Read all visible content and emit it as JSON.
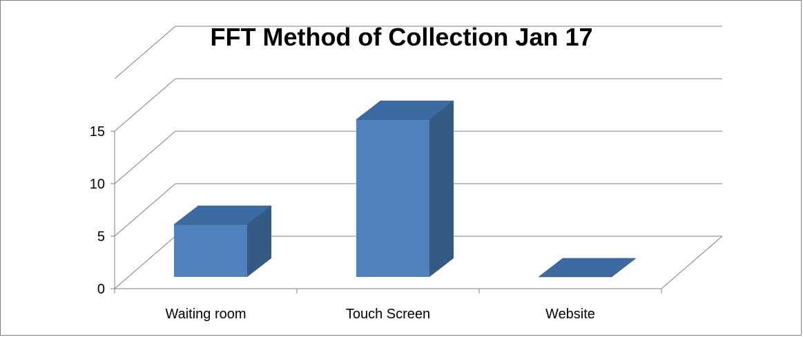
{
  "chart_data": {
    "type": "bar",
    "style": "3d-clustered-column",
    "title": "FFT Method of Collection Jan 17",
    "categories": [
      "Waiting room",
      "Touch Screen",
      "Website"
    ],
    "values": [
      5,
      15,
      0
    ],
    "ylim": [
      0,
      15
    ],
    "yticks": [
      0,
      5,
      10,
      15
    ],
    "grid": true,
    "legend": "none",
    "colors": {
      "bar_front": "#4f81bd",
      "bar_top": "#3d6aa0",
      "bar_side": "#345a86",
      "grid": "#808080",
      "text": "#000000"
    }
  }
}
